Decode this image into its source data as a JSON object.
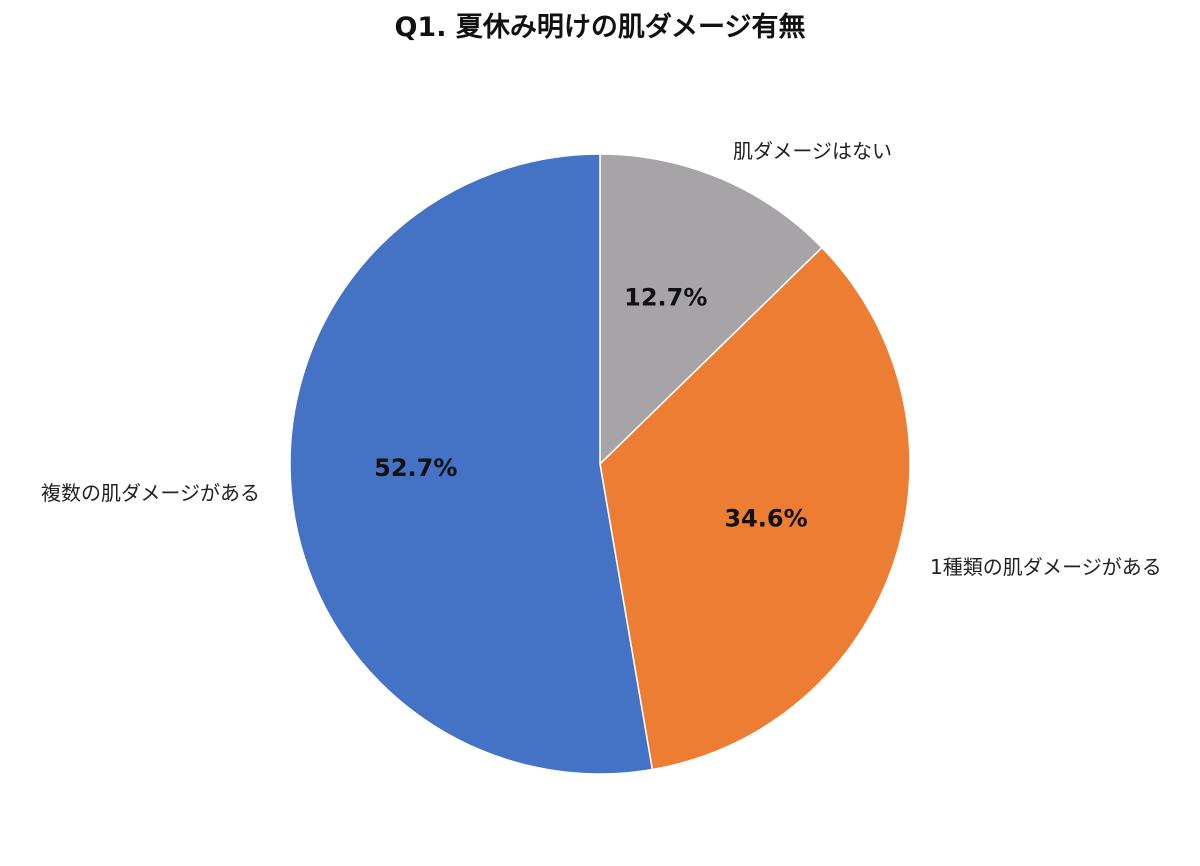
{
  "chart_data": {
    "type": "pie",
    "title": "Q1. 夏休み明けの肌ダメージ有無",
    "slices": [
      {
        "label": "肌ダメージはない",
        "value": 12.7,
        "value_label": "12.7%",
        "color": "#A6A4A7"
      },
      {
        "label": "1種類の肌ダメージがある",
        "value": 34.6,
        "value_label": "34.6%",
        "color": "#ED7D33"
      },
      {
        "label": "複数の肌ダメージがある",
        "value": 52.7,
        "value_label": "52.7%",
        "color": "#4472C4"
      }
    ],
    "start_angle": "12 o'clock",
    "direction": "clockwise",
    "legend": "none"
  }
}
